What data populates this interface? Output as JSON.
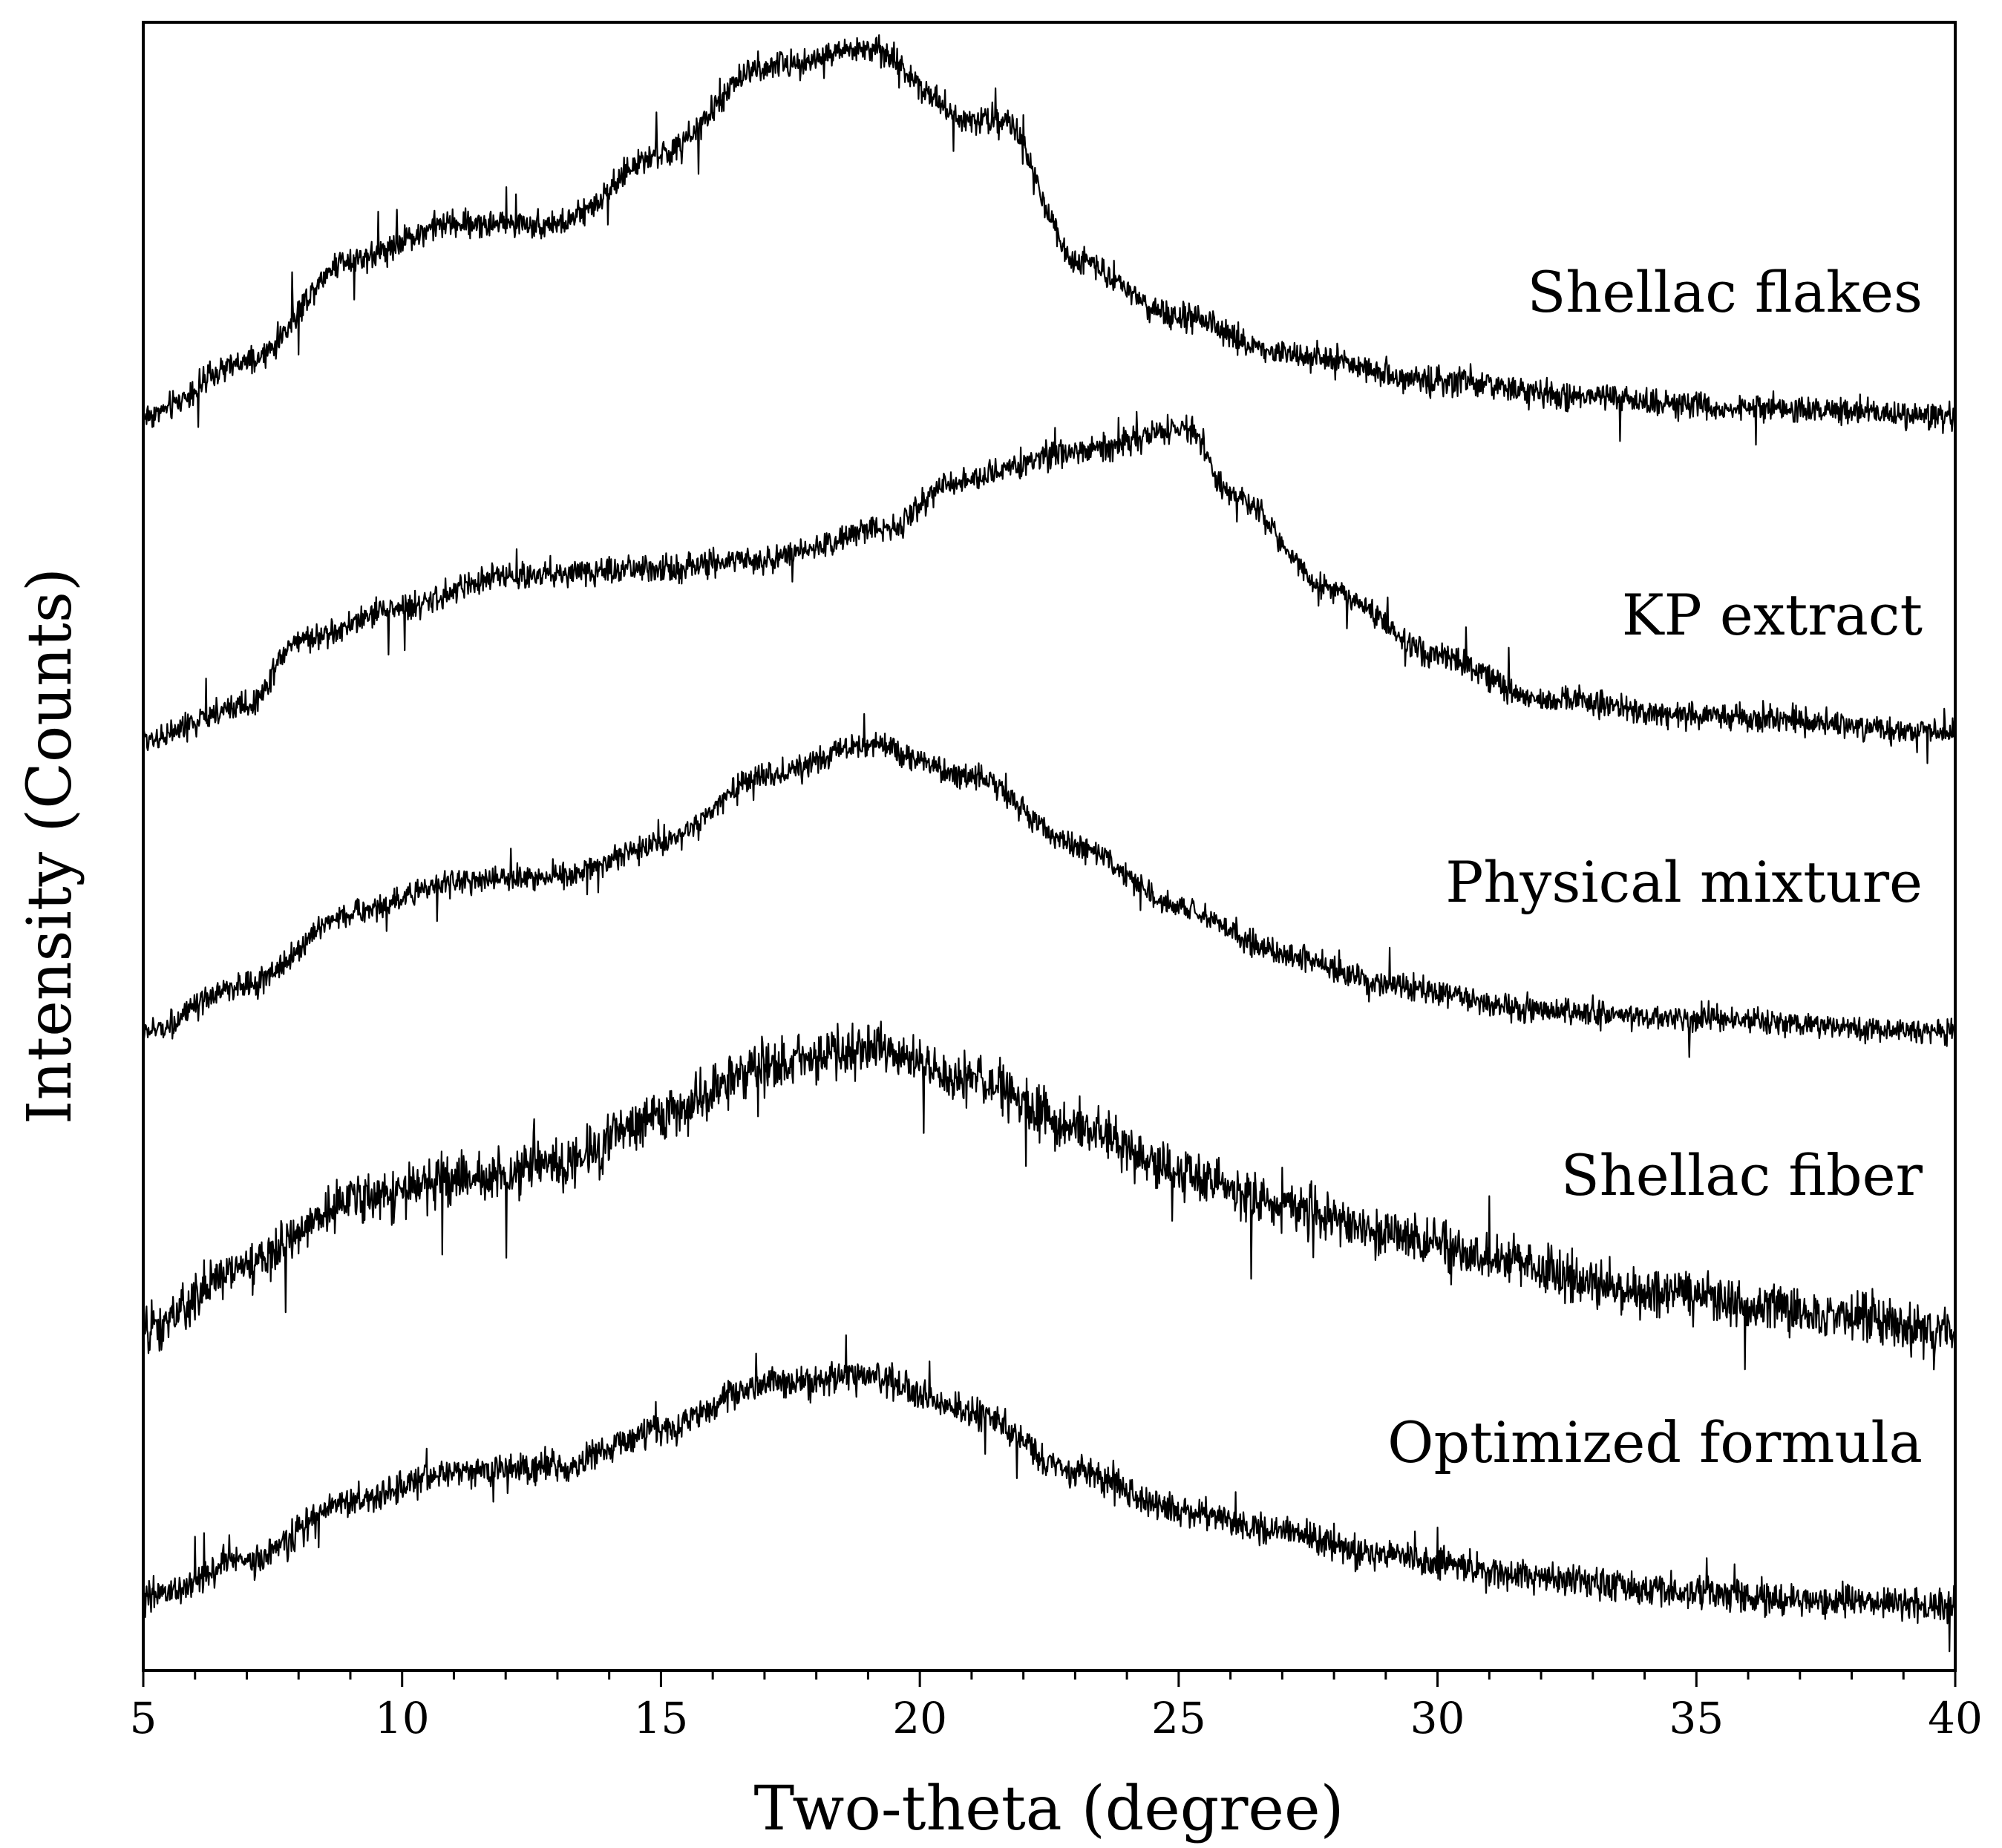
{
  "chart_data": {
    "type": "line",
    "title": "",
    "xlabel": "Two-theta (degree)",
    "ylabel": "Intensity (Counts)",
    "xlim": [
      5,
      40
    ],
    "xticks": [
      5,
      10,
      15,
      20,
      25,
      30,
      35,
      40
    ],
    "xtick_labels": [
      "5",
      "10",
      "15",
      "20",
      "25",
      "30",
      "35",
      "40"
    ],
    "yticks_shown": false,
    "grid": false,
    "legend": "inline labels at right end of each trace",
    "note": "Stacked (vertically offset) XRD patterns; relative intensity units, each trace offset, amorphous halos with no sharp crystalline peaks.",
    "series": [
      {
        "name": "Shellac flakes",
        "offset": 4,
        "noise": 0.06,
        "profile": [
          [
            5,
            0.0
          ],
          [
            7,
            0.15
          ],
          [
            9,
            0.45
          ],
          [
            11,
            0.55
          ],
          [
            13,
            0.55
          ],
          [
            15,
            0.75
          ],
          [
            17,
            1.0
          ],
          [
            19,
            1.05
          ],
          [
            21,
            0.85
          ],
          [
            21.6,
            0.85
          ],
          [
            23,
            0.45
          ],
          [
            25,
            0.28
          ],
          [
            27,
            0.18
          ],
          [
            30,
            0.1
          ],
          [
            33,
            0.05
          ],
          [
            36,
            0.02
          ],
          [
            40,
            0.0
          ]
        ]
      },
      {
        "name": "KP extract",
        "offset": 3,
        "noise": 0.06,
        "profile": [
          [
            5,
            0.0
          ],
          [
            7,
            0.1
          ],
          [
            8,
            0.3
          ],
          [
            10,
            0.4
          ],
          [
            12,
            0.5
          ],
          [
            15,
            0.52
          ],
          [
            17,
            0.55
          ],
          [
            19.5,
            0.65
          ],
          [
            20.5,
            0.78
          ],
          [
            23,
            0.88
          ],
          [
            25.2,
            0.95
          ],
          [
            26,
            0.75
          ],
          [
            28,
            0.45
          ],
          [
            30,
            0.25
          ],
          [
            32,
            0.12
          ],
          [
            35,
            0.07
          ],
          [
            40,
            0.02
          ]
        ]
      },
      {
        "name": "Physical mixture",
        "offset": 2,
        "noise": 0.06,
        "profile": [
          [
            5,
            0.0
          ],
          [
            7,
            0.15
          ],
          [
            9,
            0.38
          ],
          [
            11,
            0.48
          ],
          [
            13,
            0.5
          ],
          [
            15,
            0.6
          ],
          [
            17,
            0.82
          ],
          [
            19,
            0.92
          ],
          [
            21,
            0.82
          ],
          [
            23,
            0.6
          ],
          [
            25,
            0.4
          ],
          [
            27,
            0.25
          ],
          [
            29,
            0.15
          ],
          [
            32,
            0.07
          ],
          [
            35,
            0.04
          ],
          [
            40,
            0.0
          ]
        ]
      },
      {
        "name": "Shellac fiber",
        "offset": 1,
        "noise": 0.11,
        "profile": [
          [
            5,
            0.0
          ],
          [
            7,
            0.2
          ],
          [
            9,
            0.4
          ],
          [
            11,
            0.45
          ],
          [
            13,
            0.5
          ],
          [
            15,
            0.65
          ],
          [
            17,
            0.8
          ],
          [
            19,
            0.85
          ],
          [
            21,
            0.75
          ],
          [
            23,
            0.62
          ],
          [
            25,
            0.48
          ],
          [
            27,
            0.38
          ],
          [
            29,
            0.3
          ],
          [
            31,
            0.22
          ],
          [
            34,
            0.12
          ],
          [
            37,
            0.06
          ],
          [
            40,
            0.0
          ]
        ]
      },
      {
        "name": "Optimized formula",
        "offset": 0,
        "noise": 0.08,
        "profile": [
          [
            5,
            0.05
          ],
          [
            7,
            0.18
          ],
          [
            9,
            0.38
          ],
          [
            11,
            0.48
          ],
          [
            13,
            0.5
          ],
          [
            15,
            0.62
          ],
          [
            17,
            0.78
          ],
          [
            19,
            0.8
          ],
          [
            21,
            0.68
          ],
          [
            23,
            0.48
          ],
          [
            25,
            0.35
          ],
          [
            27,
            0.28
          ],
          [
            29,
            0.2
          ],
          [
            32,
            0.12
          ],
          [
            35,
            0.07
          ],
          [
            38,
            0.04
          ],
          [
            40,
            0.03
          ]
        ]
      }
    ]
  }
}
